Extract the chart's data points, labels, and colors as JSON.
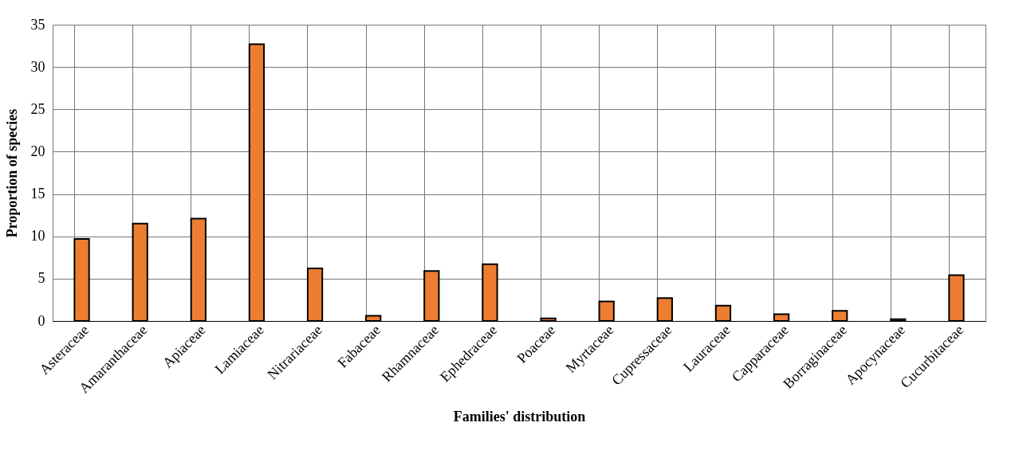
{
  "chart_data": {
    "type": "bar",
    "xlabel": "Families' distribution",
    "ylabel": "Proportion of species",
    "categories": [
      "Asteraceae",
      "Amaranthaceae",
      "Apiaceae",
      "Lamiaceae",
      "Nitrariaceae",
      "Fabaceae",
      "Rhamnaceae",
      "Ephedraceae",
      "Poaceae",
      "Myrtaceae",
      "Cupressaceae",
      "Lauraceae",
      "Capparaceae",
      "Borraginaceae",
      "Apocynaceae",
      "Cucurbitaceae"
    ],
    "values": [
      9.7,
      11.5,
      12.1,
      32.7,
      6.2,
      0.6,
      5.9,
      6.7,
      0.3,
      2.3,
      2.7,
      1.8,
      0.8,
      1.2,
      0.2,
      5.4
    ],
    "color": "#ed7d31",
    "ylim": [
      0,
      35
    ],
    "yticks": [
      0,
      5,
      10,
      15,
      20,
      25,
      30,
      35
    ],
    "grid": true
  }
}
